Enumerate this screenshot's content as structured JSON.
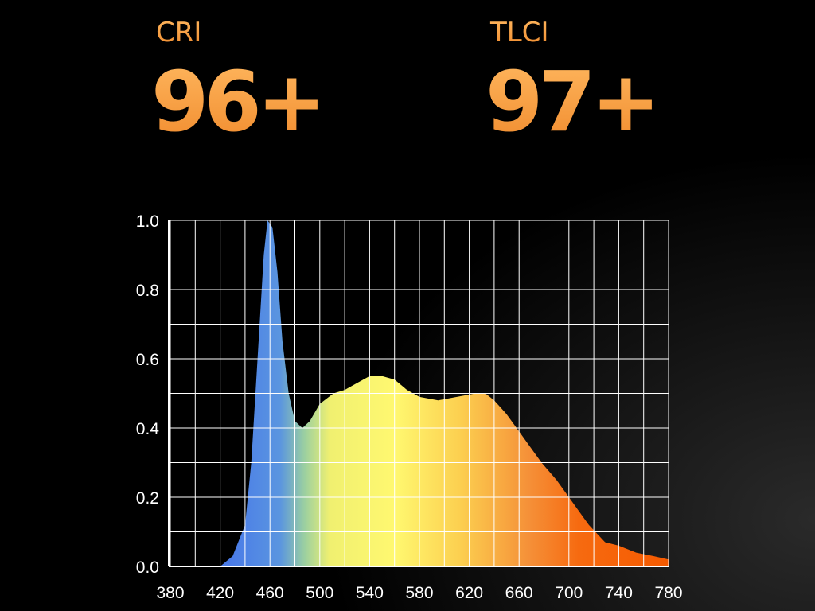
{
  "stats": [
    {
      "label": "CRI",
      "value": "96+"
    },
    {
      "label": "TLCI",
      "value": "97+"
    }
  ],
  "chart_data": {
    "type": "area",
    "x": [
      420,
      430,
      440,
      445,
      450,
      455,
      458,
      462,
      466,
      470,
      475,
      480,
      486,
      492,
      500,
      511,
      520,
      530,
      540,
      550,
      560,
      570,
      580,
      595,
      610,
      625,
      633,
      640,
      650,
      658,
      668,
      678,
      690,
      700,
      716,
      729,
      740,
      754,
      768,
      780
    ],
    "values": [
      0,
      0.03,
      0.12,
      0.3,
      0.6,
      0.9,
      1.0,
      0.98,
      0.85,
      0.65,
      0.5,
      0.42,
      0.4,
      0.42,
      0.47,
      0.5,
      0.51,
      0.53,
      0.55,
      0.55,
      0.54,
      0.51,
      0.49,
      0.48,
      0.49,
      0.5,
      0.5,
      0.48,
      0.44,
      0.4,
      0.35,
      0.3,
      0.25,
      0.2,
      0.12,
      0.07,
      0.06,
      0.04,
      0.03,
      0.02
    ],
    "xlim": [
      380,
      780
    ],
    "ylim": [
      0,
      1
    ],
    "xticks": [
      380,
      420,
      460,
      500,
      540,
      580,
      620,
      660,
      700,
      740,
      780
    ],
    "yticks": [
      {
        "value": 0,
        "label": "0.0"
      },
      0.2,
      0.4,
      0.6,
      0.8,
      {
        "value": 1,
        "label": "1.0"
      }
    ],
    "xgrid": [
      400,
      440,
      480,
      520,
      560,
      600,
      640,
      680,
      720,
      760
    ],
    "ygrid": [
      0.1,
      0.3,
      0.5,
      0.7,
      0.9
    ],
    "grid": true
  }
}
